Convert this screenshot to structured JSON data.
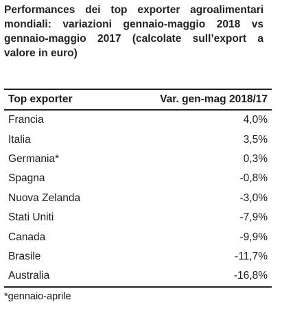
{
  "title": "Performances dei top exporter agroalimentari mondiali: variazioni gennaio-maggio 2018 vs gennaio-maggio 2017 (calcolate sull’export a valore in euro)",
  "table": {
    "headers": [
      "Top exporter",
      "Var. gen-mag 2018/17"
    ],
    "rows": [
      {
        "country": "Francia",
        "value": "4,0%"
      },
      {
        "country": "Italia",
        "value": "3,5%"
      },
      {
        "country": "Germania*",
        "value": "0,3%"
      },
      {
        "country": "Spagna",
        "value": "-0,8%"
      },
      {
        "country": "Nuova Zelanda",
        "value": "-3,0%"
      },
      {
        "country": "Stati Uniti",
        "value": "-7,9%"
      },
      {
        "country": "Canada",
        "value": "-9,9%"
      },
      {
        "country": "Brasile",
        "value": "-11,7%"
      },
      {
        "country": "Australia",
        "value": "-16,8%"
      }
    ]
  },
  "footnote": "*gennaio-aprile"
}
